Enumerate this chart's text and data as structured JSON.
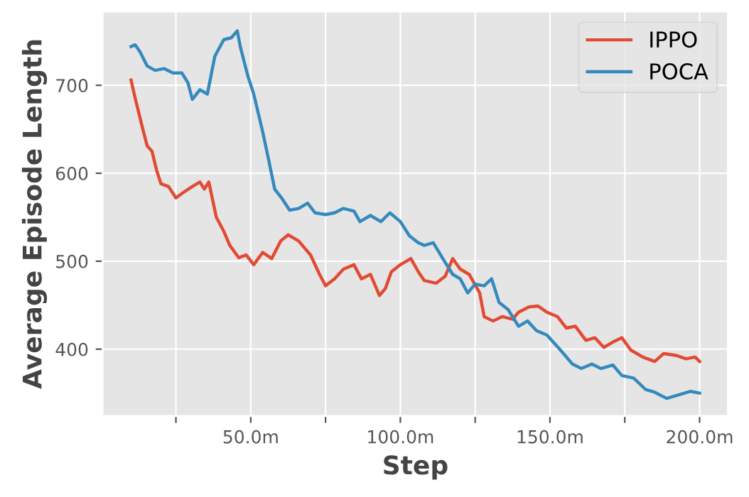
{
  "chart_data": {
    "type": "line",
    "xlabel": "Step",
    "ylabel": "Average Episode Length",
    "xlim": [
      0.5,
      209.5
    ],
    "ylim": [
      324,
      784
    ],
    "xticks": [
      {
        "value": 25,
        "label": null
      },
      {
        "value": 50,
        "label": "50.0m"
      },
      {
        "value": 75,
        "label": null
      },
      {
        "value": 100,
        "label": "100.0m"
      },
      {
        "value": 125,
        "label": null
      },
      {
        "value": 150,
        "label": "150.0m"
      },
      {
        "value": 175,
        "label": null
      },
      {
        "value": 200,
        "label": "200.0m"
      }
    ],
    "yticks": [
      400,
      500,
      600,
      700
    ],
    "grid": true,
    "legend": "top right",
    "line_style": "solid",
    "marker": "none",
    "series": [
      {
        "name": "IPPO",
        "color": "#e24a33",
        "x": [
          10,
          11.4,
          13.8,
          15.4,
          17,
          18.5,
          20,
          22.5,
          25,
          27,
          30.5,
          33,
          34.5,
          36,
          38.5,
          41,
          43,
          46,
          48.5,
          51,
          54,
          57,
          60,
          62.5,
          66,
          70,
          73,
          75,
          78,
          81,
          84.5,
          87,
          90,
          93,
          95,
          97,
          100,
          103.5,
          106,
          108,
          112,
          115,
          117.5,
          120,
          123,
          126.5,
          128,
          131,
          134,
          137.5,
          139.5,
          143,
          146,
          149,
          152.5,
          155.5,
          158.5,
          162,
          165,
          168,
          171,
          174,
          177,
          181,
          185,
          188,
          192,
          195.5,
          198.5,
          200
        ],
        "values": [
          706,
          685,
          652,
          631,
          625,
          604,
          588,
          585,
          572,
          577,
          585,
          590,
          582,
          590,
          550,
          534,
          518,
          504,
          507,
          496,
          510,
          503,
          523,
          530,
          523,
          507,
          485,
          472,
          480,
          491,
          496,
          480,
          485,
          461,
          469,
          488,
          496,
          503,
          488,
          478,
          475,
          483,
          503,
          491,
          485,
          464,
          437,
          432,
          437,
          434,
          442,
          448,
          449,
          442,
          437,
          424,
          426,
          410,
          413,
          402,
          408,
          413,
          399,
          391,
          386,
          395,
          393,
          389,
          391,
          386
        ]
      },
      {
        "name": "POCA",
        "color": "#348abd",
        "x": [
          10,
          11.4,
          13,
          15.4,
          18,
          21,
          24,
          27,
          29,
          30.5,
          33,
          35.5,
          38,
          41,
          43.5,
          45.5,
          46.5,
          49,
          51,
          54,
          56,
          58,
          60.5,
          63,
          66,
          69,
          71.5,
          75,
          78,
          81,
          84.5,
          86.5,
          90,
          93.5,
          96.5,
          100,
          103,
          106,
          108,
          111,
          114,
          117.5,
          120,
          122.5,
          125,
          128,
          130.5,
          133,
          136,
          139.5,
          142.5,
          145.5,
          149,
          153.5,
          157.5,
          160.5,
          164,
          167,
          171,
          174,
          178,
          182,
          185,
          189,
          193,
          197,
          200
        ],
        "values": [
          744,
          746,
          738,
          722,
          717,
          719,
          714,
          714,
          703,
          684,
          695,
          690,
          733,
          752,
          754,
          762,
          744,
          711,
          690,
          647,
          615,
          582,
          571,
          558,
          560,
          566,
          555,
          553,
          555,
          560,
          557,
          545,
          552,
          545,
          555,
          545,
          529,
          521,
          518,
          521,
          504,
          485,
          480,
          464,
          474,
          472,
          480,
          453,
          445,
          426,
          432,
          421,
          416,
          399,
          383,
          378,
          383,
          378,
          382,
          370,
          367,
          354,
          351,
          344,
          348,
          352,
          350
        ]
      }
    ]
  }
}
